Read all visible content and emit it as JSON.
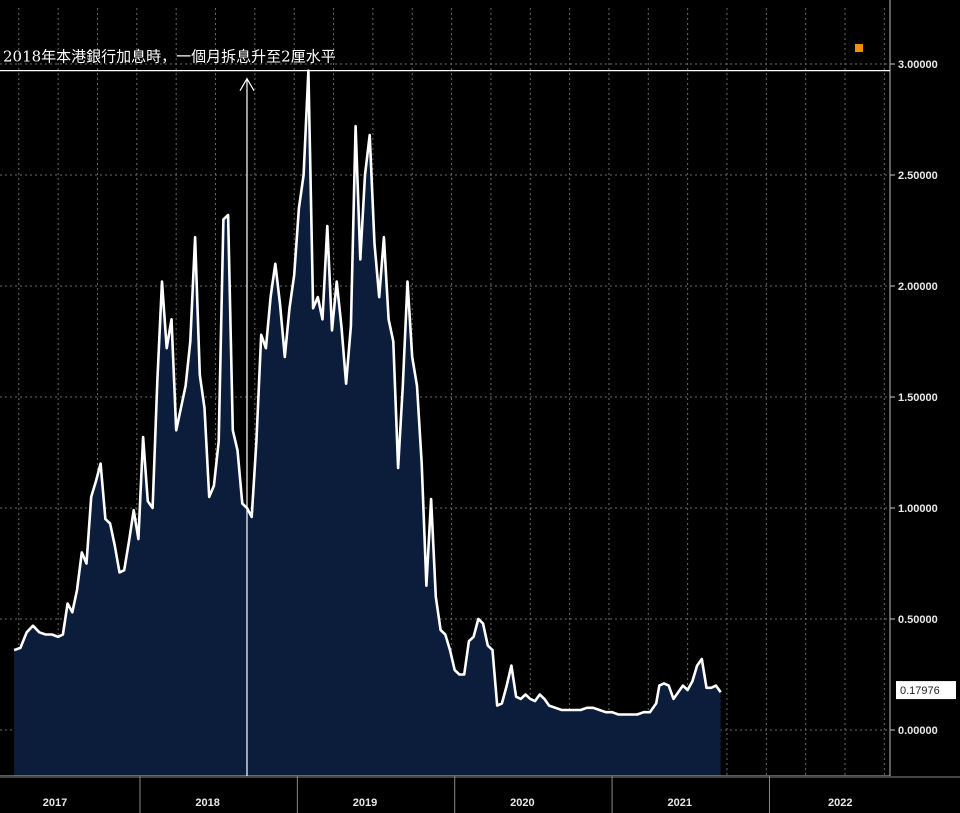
{
  "chart_data": {
    "type": "area",
    "title": "",
    "xlabel": "",
    "ylabel": "",
    "ylim": [
      -0.2,
      3.25
    ],
    "xlim": [
      2016.72,
      2022.32
    ],
    "y_ticks": [
      0.0,
      0.5,
      1.0,
      1.5,
      2.0,
      2.5,
      3.0
    ],
    "y_tick_labels": [
      "0.00000",
      "0.50000",
      "1.00000",
      "1.50000",
      "2.00000",
      "2.50000",
      "3.00000"
    ],
    "x_categories": [
      {
        "label": "2017",
        "center": 2016.98
      },
      {
        "label": "2018",
        "center": 2017.95
      },
      {
        "label": "2019",
        "center": 2018.95
      },
      {
        "label": "2020",
        "center": 2019.95
      },
      {
        "label": "2021",
        "center": 2020.95
      },
      {
        "label": "2022",
        "center": 2021.97
      }
    ],
    "x_separators": [
      2017.52,
      2018.52,
      2019.52,
      2020.52,
      2021.52
    ],
    "last_value_label": "0.17976",
    "last_value": 0.17976,
    "annotation": {
      "text": "2018年本港銀行加息時，一個月拆息升至2厘水平",
      "arrow_x": 2018.2,
      "level": 2.97
    },
    "colors": {
      "background": "#000000",
      "fill": "#0b1d3a",
      "line": "#ffffff",
      "grid": "#6b6b6b",
      "marker": "#f29100"
    },
    "series": [
      {
        "points": [
          [
            2016.72,
            0.36
          ],
          [
            2016.76,
            0.37
          ],
          [
            2016.8,
            0.44
          ],
          [
            2016.84,
            0.47
          ],
          [
            2016.88,
            0.44
          ],
          [
            2016.92,
            0.43
          ],
          [
            2016.96,
            0.43
          ],
          [
            2017.0,
            0.42
          ],
          [
            2017.03,
            0.43
          ],
          [
            2017.06,
            0.57
          ],
          [
            2017.09,
            0.53
          ],
          [
            2017.12,
            0.63
          ],
          [
            2017.15,
            0.8
          ],
          [
            2017.18,
            0.75
          ],
          [
            2017.21,
            1.05
          ],
          [
            2017.24,
            1.12
          ],
          [
            2017.27,
            1.2
          ],
          [
            2017.3,
            0.95
          ],
          [
            2017.33,
            0.93
          ],
          [
            2017.36,
            0.83
          ],
          [
            2017.39,
            0.71
          ],
          [
            2017.42,
            0.72
          ],
          [
            2017.45,
            0.85
          ],
          [
            2017.48,
            0.99
          ],
          [
            2017.51,
            0.86
          ],
          [
            2017.54,
            1.32
          ],
          [
            2017.57,
            1.03
          ],
          [
            2017.6,
            1.0
          ],
          [
            2017.63,
            1.57
          ],
          [
            2017.66,
            2.02
          ],
          [
            2017.69,
            1.72
          ],
          [
            2017.72,
            1.85
          ],
          [
            2017.75,
            1.35
          ],
          [
            2017.78,
            1.45
          ],
          [
            2017.81,
            1.55
          ],
          [
            2017.84,
            1.75
          ],
          [
            2017.87,
            2.22
          ],
          [
            2017.9,
            1.6
          ],
          [
            2017.93,
            1.45
          ],
          [
            2017.96,
            1.05
          ],
          [
            2017.99,
            1.1
          ],
          [
            2018.02,
            1.3
          ],
          [
            2018.05,
            2.3
          ],
          [
            2018.08,
            2.32
          ],
          [
            2018.11,
            1.35
          ],
          [
            2018.14,
            1.26
          ],
          [
            2018.17,
            1.02
          ],
          [
            2018.2,
            1.0
          ],
          [
            2018.23,
            0.96
          ],
          [
            2018.26,
            1.3
          ],
          [
            2018.29,
            1.78
          ],
          [
            2018.32,
            1.72
          ],
          [
            2018.35,
            1.95
          ],
          [
            2018.38,
            2.1
          ],
          [
            2018.41,
            1.92
          ],
          [
            2018.44,
            1.68
          ],
          [
            2018.47,
            1.9
          ],
          [
            2018.5,
            2.05
          ],
          [
            2018.53,
            2.35
          ],
          [
            2018.56,
            2.5
          ],
          [
            2018.59,
            2.97
          ],
          [
            2018.62,
            1.9
          ],
          [
            2018.65,
            1.95
          ],
          [
            2018.68,
            1.85
          ],
          [
            2018.71,
            2.27
          ],
          [
            2018.74,
            1.8
          ],
          [
            2018.77,
            2.02
          ],
          [
            2018.8,
            1.82
          ],
          [
            2018.83,
            1.56
          ],
          [
            2018.86,
            1.82
          ],
          [
            2018.89,
            2.72
          ],
          [
            2018.92,
            2.12
          ],
          [
            2018.95,
            2.5
          ],
          [
            2018.98,
            2.68
          ],
          [
            2019.01,
            2.19
          ],
          [
            2019.04,
            1.95
          ],
          [
            2019.07,
            2.22
          ],
          [
            2019.1,
            1.85
          ],
          [
            2019.13,
            1.75
          ],
          [
            2019.16,
            1.18
          ],
          [
            2019.19,
            1.55
          ],
          [
            2019.22,
            2.02
          ],
          [
            2019.25,
            1.68
          ],
          [
            2019.28,
            1.55
          ],
          [
            2019.31,
            1.2
          ],
          [
            2019.34,
            0.65
          ],
          [
            2019.37,
            1.04
          ],
          [
            2019.4,
            0.6
          ],
          [
            2019.43,
            0.45
          ],
          [
            2019.46,
            0.43
          ],
          [
            2019.49,
            0.36
          ],
          [
            2019.52,
            0.27
          ],
          [
            2019.55,
            0.25
          ],
          [
            2019.58,
            0.25
          ],
          [
            2019.61,
            0.4
          ],
          [
            2019.64,
            0.42
          ],
          [
            2019.67,
            0.5
          ],
          [
            2019.7,
            0.48
          ],
          [
            2019.73,
            0.38
          ],
          [
            2019.76,
            0.36
          ],
          [
            2019.79,
            0.11
          ],
          [
            2019.82,
            0.12
          ],
          [
            2019.85,
            0.2
          ],
          [
            2019.88,
            0.29
          ],
          [
            2019.91,
            0.15
          ],
          [
            2019.94,
            0.14
          ],
          [
            2019.97,
            0.16
          ],
          [
            2020.0,
            0.14
          ],
          [
            2020.03,
            0.13
          ],
          [
            2020.06,
            0.16
          ],
          [
            2020.09,
            0.14
          ],
          [
            2020.12,
            0.11
          ],
          [
            2020.16,
            0.1
          ],
          [
            2020.2,
            0.09
          ],
          [
            2020.24,
            0.09
          ],
          [
            2020.28,
            0.09
          ],
          [
            2020.32,
            0.09
          ],
          [
            2020.36,
            0.1
          ],
          [
            2020.4,
            0.1
          ],
          [
            2020.44,
            0.09
          ],
          [
            2020.48,
            0.08
          ],
          [
            2020.52,
            0.08
          ],
          [
            2020.56,
            0.07
          ],
          [
            2020.6,
            0.07
          ],
          [
            2020.64,
            0.07
          ],
          [
            2020.68,
            0.07
          ],
          [
            2020.72,
            0.08
          ],
          [
            2020.76,
            0.08
          ],
          [
            2020.8,
            0.12
          ],
          [
            2020.82,
            0.2
          ],
          [
            2020.85,
            0.21
          ],
          [
            2020.88,
            0.2
          ],
          [
            2020.91,
            0.14
          ],
          [
            2020.94,
            0.17
          ],
          [
            2020.97,
            0.2
          ],
          [
            2021.0,
            0.18
          ],
          [
            2021.03,
            0.22
          ],
          [
            2021.06,
            0.29
          ],
          [
            2021.09,
            0.32
          ],
          [
            2021.12,
            0.19
          ],
          [
            2021.15,
            0.19
          ],
          [
            2021.18,
            0.2
          ],
          [
            2021.21,
            0.17
          ]
        ]
      }
    ]
  }
}
